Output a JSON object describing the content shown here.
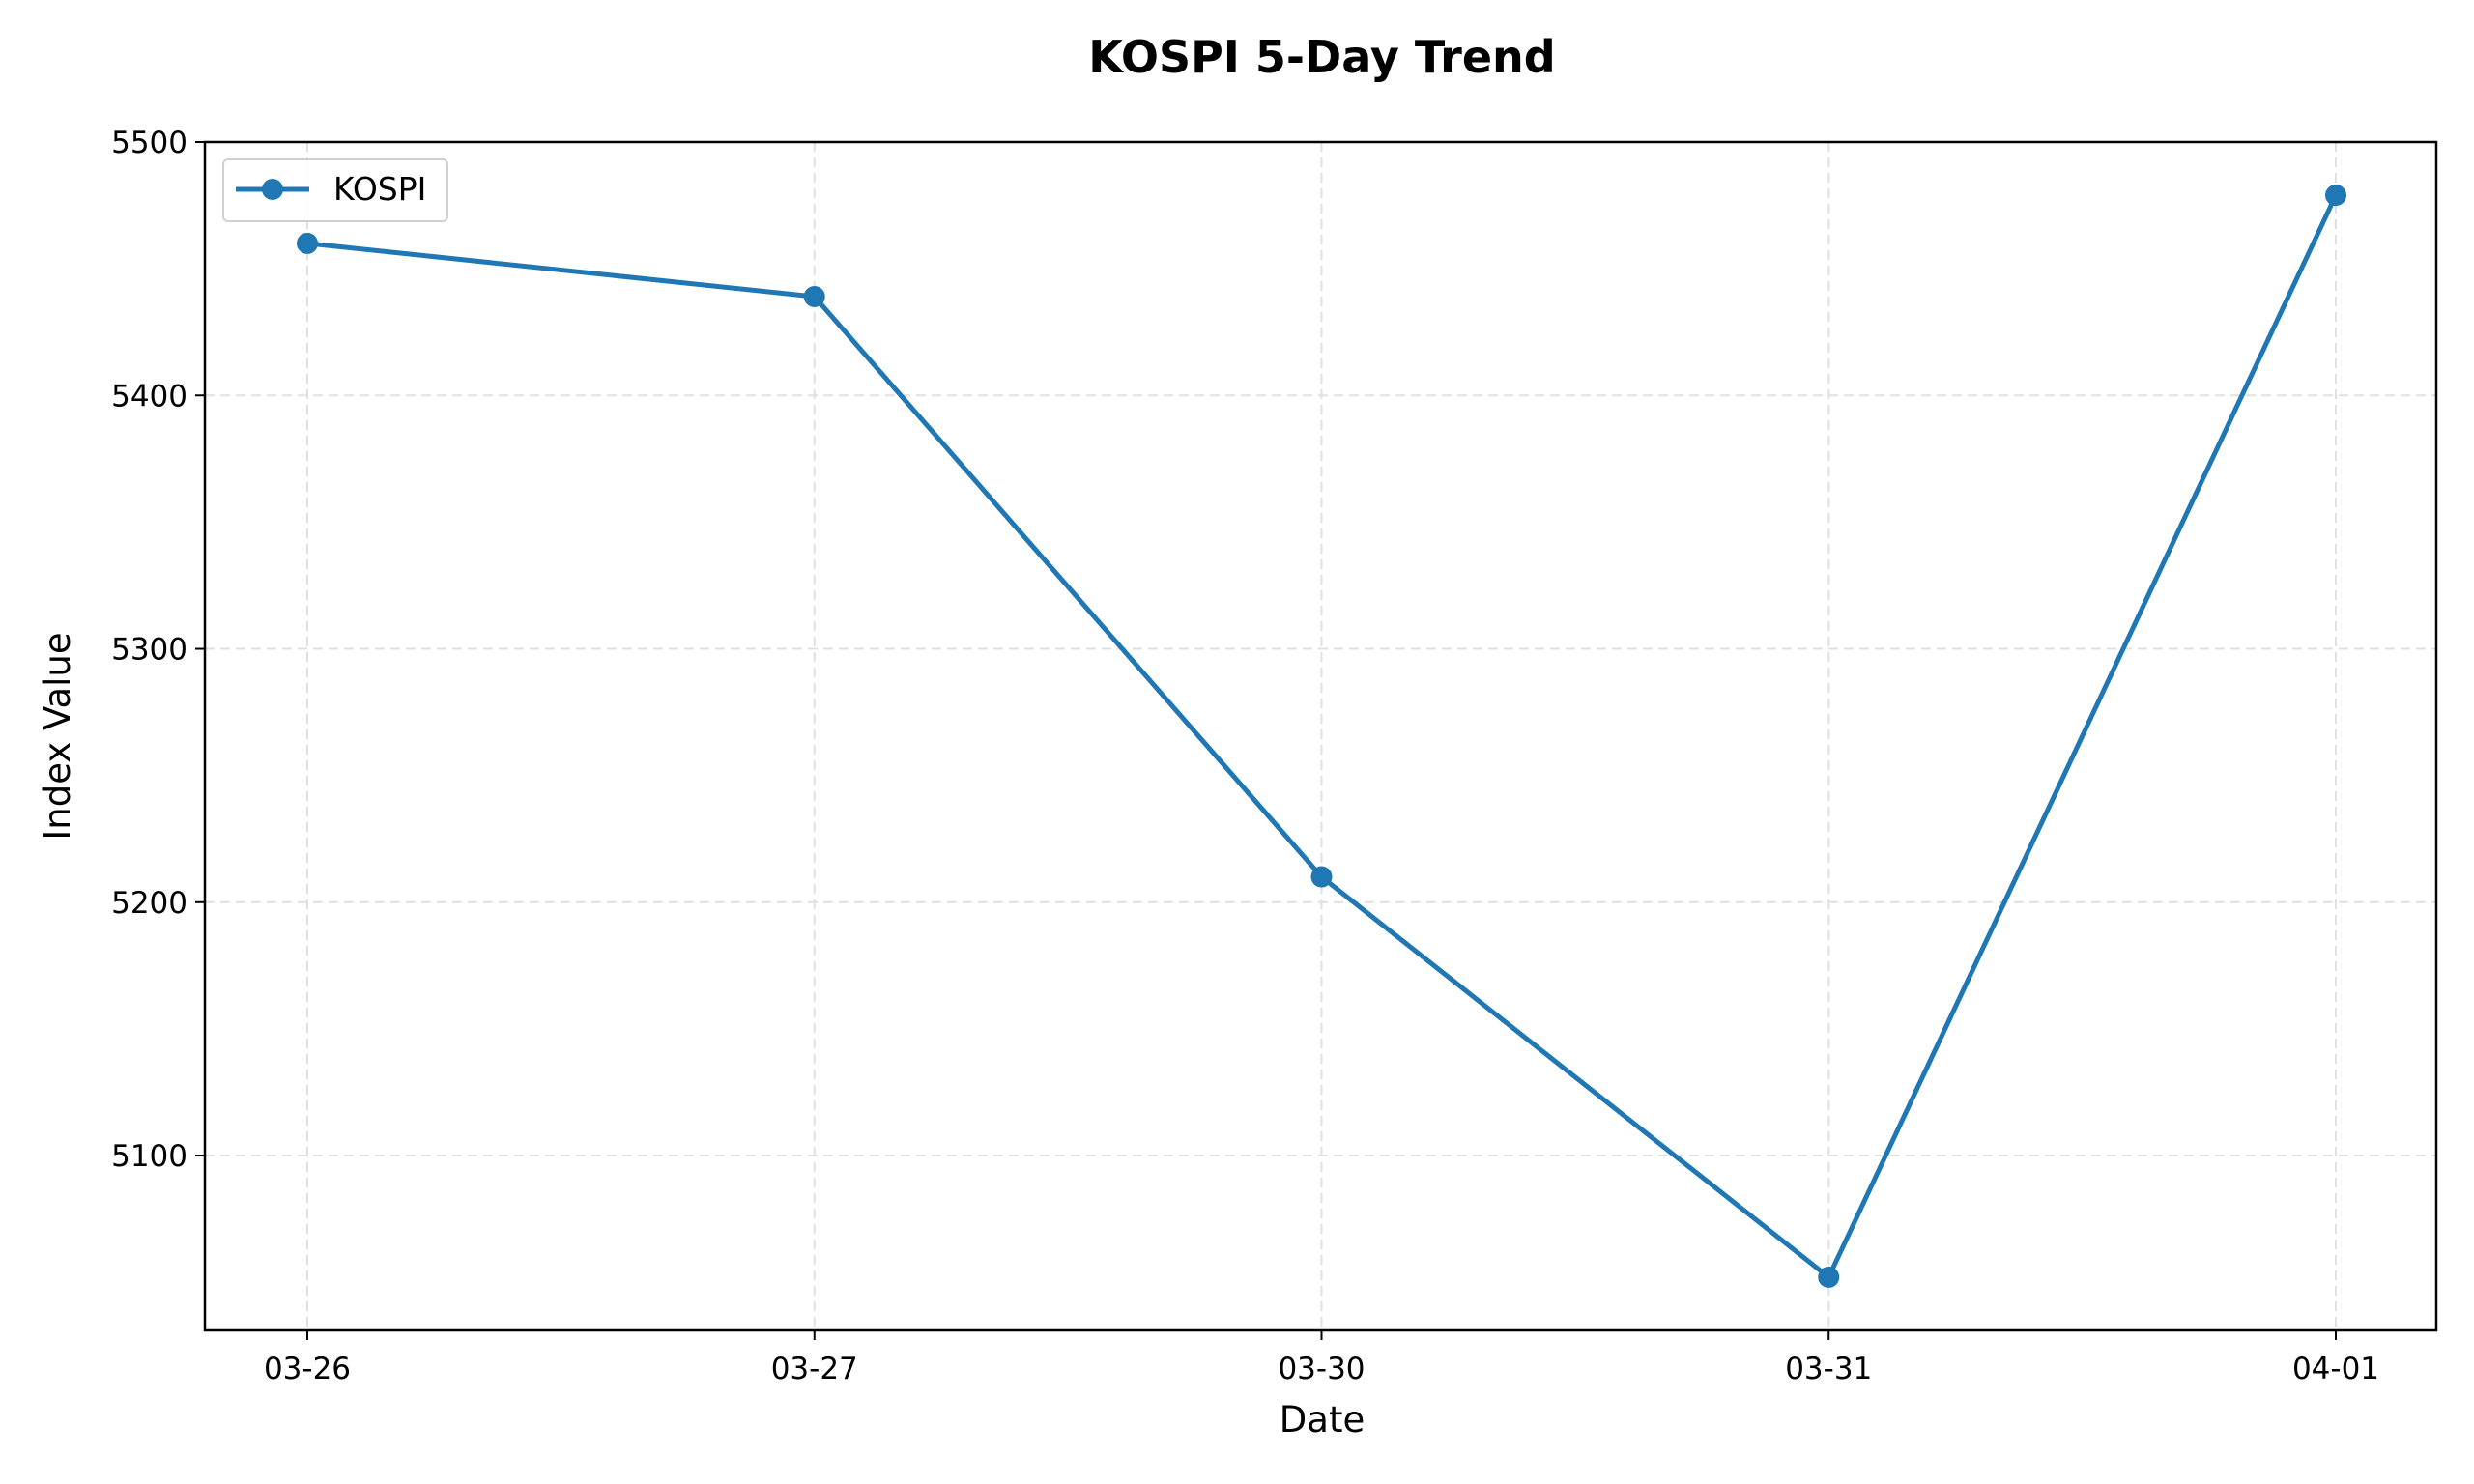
{
  "chart_data": {
    "type": "line",
    "title": "KOSPI 5-Day Trend",
    "xlabel": "Date",
    "ylabel": "Index Value",
    "categories": [
      "03-26",
      "03-27",
      "03-30",
      "03-31",
      "04-01"
    ],
    "series": [
      {
        "name": "KOSPI",
        "values": [
          5460,
          5439,
          5210,
          5052,
          5479
        ],
        "color": "#1f77b4",
        "marker": "circle"
      }
    ],
    "ylim": [
      5031,
      5500
    ],
    "yticks": [
      5100,
      5200,
      5300,
      5400,
      5500
    ],
    "grid": true,
    "legend": "top-left"
  }
}
